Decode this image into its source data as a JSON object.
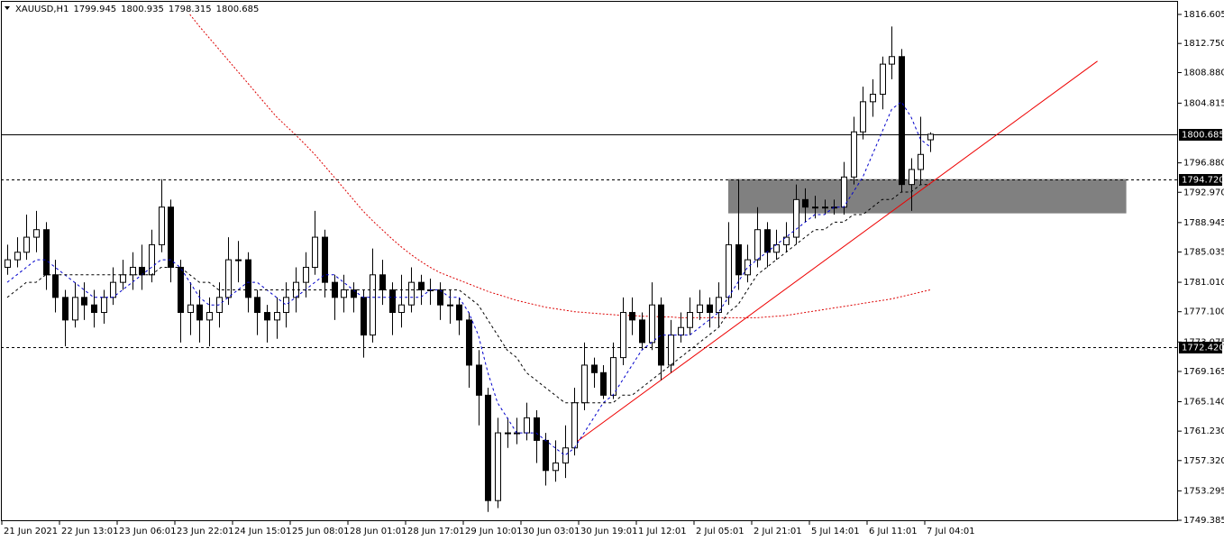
{
  "chart_data": {
    "type": "candlestick",
    "title": "XAUUSD,H1",
    "header_ohlc": [
      1799.945,
      1800.935,
      1798.315,
      1800.685
    ],
    "x": [
      "21 Jun 2021",
      null,
      null,
      null,
      null,
      null,
      "22 Jun 13:01",
      null,
      null,
      null,
      null,
      null,
      "23 Jun 06:01",
      null,
      null,
      null,
      null,
      null,
      "23 Jun 22:01",
      null,
      null,
      null,
      null,
      null,
      "24 Jun 15:01",
      null,
      null,
      null,
      null,
      null,
      "25 Jun 08:01",
      null,
      null,
      null,
      null,
      null,
      "28 Jun 01:01",
      null,
      null,
      null,
      null,
      null,
      "28 Jun 17:01",
      null,
      null,
      null,
      null,
      null,
      "29 Jun 10:01",
      null,
      null,
      null,
      null,
      null,
      "30 Jun 03:01",
      null,
      null,
      null,
      null,
      null,
      "30 Jun 19:01",
      null,
      null,
      null,
      null,
      null,
      "1 Jul 12:01",
      null,
      null,
      null,
      null,
      null,
      "2 Jul 05:01",
      null,
      null,
      null,
      null,
      null,
      "2 Jul 21:01",
      null,
      null,
      null,
      null,
      null,
      "5 Jul 14:01",
      null,
      null,
      null,
      null,
      null,
      "6 Jul 11:01",
      null,
      null,
      null,
      null,
      null,
      "7 Jul 04:01"
    ],
    "open": [
      1783,
      1784,
      1785,
      1787,
      1788,
      1782,
      1779,
      1776,
      1779,
      1778,
      1777,
      1779,
      1781,
      1782,
      1783,
      1782,
      1786,
      1791,
      1783,
      1777,
      1778,
      1776,
      1777,
      1779,
      1784,
      1784,
      1779,
      1777,
      1776,
      1777,
      1779,
      1781,
      1783,
      1787,
      1781,
      1779,
      1780,
      1779,
      1774,
      1782,
      1780,
      1777,
      1778,
      1781,
      1780,
      1780,
      1778,
      1778,
      1776,
      1770,
      1766,
      1752,
      1761,
      1761,
      1761,
      1763,
      1760,
      1756,
      1757,
      1759,
      1765,
      1770,
      1769,
      1766,
      1771,
      1777,
      1776,
      1773,
      1778,
      1770,
      1774,
      1775,
      1777,
      1778,
      1777,
      1779,
      1786,
      1782,
      1784,
      1788,
      1785,
      1786,
      1787,
      1792,
      1791,
      1791,
      1791,
      1791,
      1795,
      1801,
      1805,
      1806,
      1810,
      1811,
      1794,
      1796,
      1799.945
    ],
    "high": [
      1786,
      1787,
      1790,
      1790.5,
      1789,
      1784,
      1780,
      1781,
      1781,
      1780,
      1780,
      1783,
      1784,
      1785,
      1786,
      1788,
      1794.7,
      1792,
      1784,
      1781,
      1780,
      1779,
      1781,
      1787,
      1786.5,
      1785,
      1780,
      1778,
      1779,
      1781,
      1783,
      1785,
      1790.5,
      1788,
      1782,
      1782,
      1781,
      1780,
      1785.5,
      1784,
      1781,
      1782,
      1783,
      1782,
      1781.5,
      1781,
      1780,
      1779,
      1777,
      1772,
      1767,
      1763,
      1763,
      1763,
      1765,
      1764,
      1761,
      1760,
      1762,
      1767,
      1773,
      1771,
      1770,
      1773,
      1779,
      1779,
      1777,
      1781,
      1779,
      1776,
      1777,
      1779,
      1780,
      1779,
      1781,
      1789,
      1794.7,
      1786,
      1791,
      1789,
      1788,
      1789,
      1794,
      1793.5,
      1792.5,
      1792,
      1792,
      1797,
      1803,
      1807,
      1808,
      1811,
      1815,
      1812,
      1797.5,
      1803,
      1800.935
    ],
    "low": [
      1782,
      1783,
      1784,
      1785,
      1780,
      1777,
      1772.5,
      1775,
      1776,
      1775,
      1775.5,
      1778,
      1780,
      1780,
      1780,
      1781,
      1785,
      1781,
      1773,
      1774,
      1773,
      1772.5,
      1775,
      1778,
      1781,
      1777,
      1774,
      1773,
      1773.5,
      1775,
      1777,
      1779,
      1782,
      1779,
      1776,
      1777,
      1777,
      1771,
      1773,
      1778,
      1774,
      1775,
      1777,
      1778,
      1778,
      1776,
      1775.5,
      1774,
      1767,
      1762,
      1750.5,
      1751,
      1759,
      1759.5,
      1760,
      1757,
      1754,
      1754.5,
      1755,
      1758,
      1764,
      1767,
      1765.5,
      1765.5,
      1770,
      1774,
      1772,
      1772,
      1768,
      1769,
      1773,
      1774,
      1776,
      1775,
      1775,
      1778,
      1780,
      1781,
      1783,
      1783,
      1784,
      1785,
      1786,
      1789,
      1789.5,
      1790,
      1790,
      1790,
      1794,
      1800,
      1803,
      1804,
      1808,
      1793,
      1790.5,
      1794,
      1798.315
    ],
    "close": [
      1784,
      1785,
      1787,
      1788,
      1782,
      1779,
      1776,
      1779,
      1778,
      1777,
      1779,
      1781,
      1782,
      1783,
      1782,
      1786,
      1791,
      1783,
      1777,
      1778,
      1776,
      1777,
      1779,
      1784,
      1784,
      1779,
      1777,
      1776,
      1777,
      1779,
      1781,
      1783,
      1787,
      1781,
      1779,
      1780,
      1779,
      1774,
      1782,
      1780,
      1777,
      1778,
      1781,
      1780,
      1780,
      1778,
      1778,
      1776,
      1770,
      1766,
      1752,
      1761,
      1761,
      1761,
      1763,
      1760,
      1756,
      1757,
      1759,
      1765,
      1770,
      1769,
      1766,
      1771,
      1777,
      1776,
      1773,
      1778,
      1770,
      1774,
      1775,
      1777,
      1778,
      1777,
      1779,
      1786,
      1782,
      1784,
      1788,
      1785,
      1786,
      1787,
      1792,
      1791,
      1791,
      1791,
      1791,
      1795,
      1801,
      1805,
      1806,
      1810,
      1811,
      1794,
      1796,
      1798,
      1800.685
    ],
    "moving_averages": [
      {
        "color": "#0000cc",
        "style": "dashed",
        "values": [
          1781,
          1782,
          1783,
          1784,
          1784,
          1783,
          1782,
          1781,
          1780,
          1779,
          1779,
          1779,
          1780,
          1781,
          1782,
          1783,
          1784,
          1784,
          1783,
          1781,
          1779,
          1778,
          1778,
          1779,
          1780,
          1781,
          1781,
          1780,
          1779,
          1778,
          1779,
          1780,
          1781,
          1782,
          1782,
          1781,
          1780,
          1779,
          1779,
          1779,
          1779,
          1779,
          1779,
          1779,
          1780,
          1780,
          1779,
          1779,
          1777,
          1774,
          1769,
          1765,
          1763,
          1761,
          1761,
          1761,
          1760,
          1759,
          1758,
          1759,
          1761,
          1763,
          1765,
          1766,
          1768,
          1770,
          1772,
          1773,
          1774,
          1774,
          1774,
          1774,
          1775,
          1776,
          1777,
          1779,
          1781,
          1783,
          1784,
          1785,
          1786,
          1787,
          1788,
          1789,
          1790,
          1790,
          1791,
          1791,
          1793,
          1795,
          1798,
          1801,
          1804,
          1805,
          1803,
          1800,
          1799
        ]
      },
      {
        "color": "#000000",
        "style": "dashed",
        "values": [
          1779,
          1780,
          1781,
          1781,
          1782,
          1782,
          1782,
          1782,
          1782,
          1782,
          1782,
          1782,
          1782,
          1782,
          1782,
          1782,
          1783,
          1783,
          1783,
          1782,
          1781,
          1781,
          1780,
          1780,
          1780,
          1780,
          1780,
          1780,
          1780,
          1780,
          1780,
          1780,
          1780,
          1780,
          1780,
          1780,
          1780,
          1780,
          1780,
          1780,
          1780,
          1780,
          1780,
          1780,
          1780,
          1780,
          1780,
          1780,
          1779,
          1778,
          1776,
          1774,
          1772,
          1771,
          1769,
          1768,
          1767,
          1766,
          1765,
          1765,
          1765,
          1765,
          1765,
          1765,
          1766,
          1766,
          1767,
          1768,
          1769,
          1770,
          1771,
          1772,
          1773,
          1774,
          1775,
          1777,
          1778,
          1780,
          1782,
          1783,
          1784,
          1785,
          1786,
          1787,
          1788,
          1788,
          1789,
          1789,
          1790,
          1790,
          1791,
          1792,
          1792,
          1793,
          1793,
          1794,
          1794
        ]
      },
      {
        "color": "#dd0000",
        "style": "dotted",
        "values": [
          null,
          null,
          null,
          null,
          null,
          null,
          null,
          null,
          null,
          null,
          null,
          null,
          null,
          null,
          null,
          null,
          null,
          null,
          null,
          1816.6,
          1815,
          1813.5,
          1812,
          1810.5,
          1809,
          1807.5,
          1806,
          1804.5,
          1803,
          1801.8,
          1800.6,
          1799.3,
          1798,
          1796.5,
          1795,
          1793.5,
          1792,
          1790.5,
          1789.2,
          1788,
          1786.8,
          1785.7,
          1784.7,
          1783.8,
          1783,
          1782.3,
          1781.8,
          1781.3,
          1780.8,
          1780.3,
          1779.8,
          1779.4,
          1779,
          1778.6,
          1778.3,
          1778,
          1777.7,
          1777.5,
          1777.3,
          1777.1,
          1777,
          1776.9,
          1776.8,
          1776.7,
          1776.6,
          1776.6,
          1776.5,
          1776.5,
          1776.4,
          1776.4,
          1776.3,
          1776.3,
          1776.3,
          1776.3,
          1776.3,
          1776.3,
          1776.3,
          1776.3,
          1776.3,
          1776.4,
          1776.5,
          1776.6,
          1776.8,
          1777,
          1777.2,
          1777.4,
          1777.6,
          1777.8,
          1778,
          1778.2,
          1778.4,
          1778.6,
          1778.8,
          1779.1,
          1779.4,
          1779.7,
          1780
        ]
      }
    ],
    "levels": [
      {
        "value": 1800.685,
        "style": "solid"
      },
      {
        "value": 1794.72,
        "label": "1794.720",
        "style": "dashed"
      },
      {
        "value": 1772.42,
        "label": "1772.420",
        "style": "dashed"
      }
    ],
    "zone": {
      "from": 75,
      "to": 116.4,
      "top": 1794.72,
      "bottom": 1790.17,
      "color": "#808080"
    },
    "trendline": {
      "start": [
        59,
        1759.6
      ],
      "end": [
        113.4,
        1810.4
      ],
      "color": "#ee0000"
    },
    "ylim": [
      1749.265,
      1818.522
    ],
    "yticks": [
      1816.605,
      {
        "value": 1812.75,
        "label": "1812.750"
      },
      {
        "value": 1808.88,
        "label": "1808.880"
      },
      1804.815,
      {
        "value": 1796.88,
        "label": "1796.880"
      },
      {
        "value": 1792.97,
        "label": "1792.970"
      },
      1788.945,
      1785.035,
      {
        "value": 1781.01,
        "label": "1781.010"
      },
      {
        "value": 1777.1,
        "label": "1777.100"
      },
      1773.075,
      1769.165,
      {
        "value": 1765.14,
        "label": "1765.140"
      },
      {
        "value": 1761.23,
        "label": "1761.230"
      },
      {
        "value": 1757.32,
        "label": "1757.320"
      },
      1753.295,
      1749.385
    ],
    "grid": false
  }
}
